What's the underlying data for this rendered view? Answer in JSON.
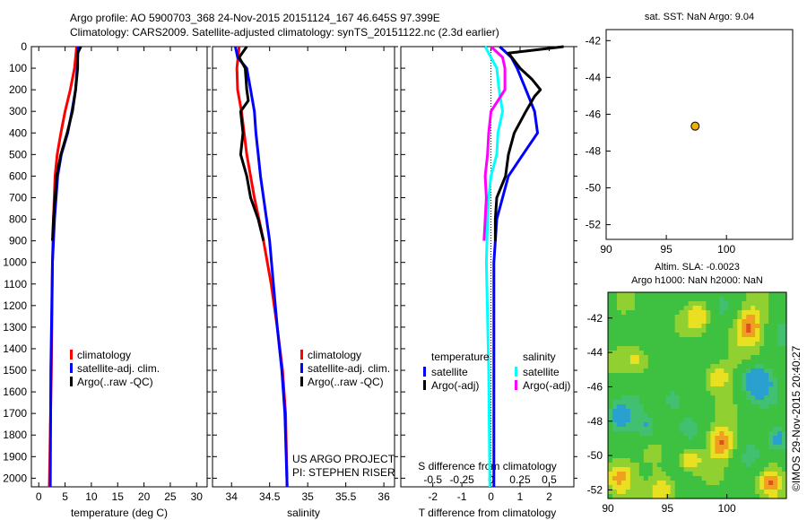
{
  "header": {
    "line1": "Argo profile: AO 5900703_368 24-Nov-2015 20151124_167 46.645S 97.399E",
    "line2": "Climatology: CARS2009. Satellite-adjusted climatology: synTS_20151122.nc (2.3d earlier)"
  },
  "credits": {
    "project": "US ARGO PROJECT",
    "pi": "PI: STEPHEN RISER",
    "imos": "©IMOS 29-Nov-2015 20:40:27"
  },
  "colors": {
    "climatology": "#ff0000",
    "satellite": "#0000ff",
    "argo": "#000000",
    "s_satellite": "#00ffff",
    "s_argo": "#ff00ff",
    "dot": "#f0b000"
  },
  "chart_data": [
    {
      "type": "line",
      "id": "temperature",
      "xlabel": "temperature (deg C)",
      "ylabel": "",
      "xlim": [
        -1.4,
        32
      ],
      "ylim": [
        2040,
        0
      ],
      "xticks": [
        "0",
        "5",
        "10",
        "15",
        "20",
        "25",
        "30"
      ],
      "xtick_values": [
        0,
        5,
        10,
        15,
        20,
        25,
        30
      ],
      "yticks": [
        "0",
        "100",
        "200",
        "300",
        "400",
        "500",
        "600",
        "700",
        "800",
        "900",
        "1000",
        "1100",
        "1200",
        "1300",
        "1400",
        "1500",
        "1600",
        "1700",
        "1800",
        "1900",
        "2000"
      ],
      "legend": [
        "climatology",
        "satellite-adj. clim.",
        "Argo(..raw -QC)"
      ],
      "series": [
        {
          "name": "climatology",
          "color": "#ff0000",
          "depth": [
            0,
            100,
            200,
            300,
            400,
            500,
            600,
            800,
            1000,
            1500,
            2040
          ],
          "values": [
            7.2,
            6.8,
            6.0,
            5.0,
            4.2,
            3.5,
            3.1,
            2.8,
            2.6,
            2.4,
            2.0
          ]
        },
        {
          "name": "satellite-adj. clim.",
          "color": "#0000ff",
          "depth": [
            0,
            100,
            200,
            300,
            400,
            500,
            600,
            800,
            1000,
            1500,
            2040
          ],
          "values": [
            7.5,
            7.3,
            7.0,
            6.3,
            5.5,
            4.3,
            3.6,
            3.0,
            2.6,
            2.3,
            2.2
          ]
        },
        {
          "name": "Argo(..raw -QC)",
          "color": "#000000",
          "depth": [
            0,
            30,
            100,
            200,
            300,
            400,
            500,
            600,
            800,
            900
          ],
          "values": [
            8.0,
            7.4,
            7.4,
            7.0,
            6.4,
            5.4,
            4.2,
            3.4,
            2.8,
            2.6
          ]
        }
      ]
    },
    {
      "type": "line",
      "id": "salinity",
      "xlabel": "salinity",
      "xlim": [
        33.75,
        36.14
      ],
      "ylim": [
        2040,
        0
      ],
      "xticks": [
        "34",
        "34.5",
        "35",
        "35.5",
        "36"
      ],
      "xtick_values": [
        34,
        34.5,
        35,
        35.5,
        36
      ],
      "legend": [
        "climatology",
        "satellite-adj. clim.",
        "Argo(..raw -QC)"
      ],
      "series": [
        {
          "name": "climatology",
          "color": "#ff0000",
          "depth": [
            0,
            100,
            200,
            300,
            500,
            700,
            900,
            1100,
            1300,
            1500,
            1700,
            2040
          ],
          "values": [
            34.1,
            34.07,
            34.08,
            34.13,
            34.2,
            34.3,
            34.42,
            34.52,
            34.6,
            34.67,
            34.71,
            34.73
          ]
        },
        {
          "name": "satellite-adj. clim.",
          "color": "#0000ff",
          "depth": [
            0,
            50,
            100,
            200,
            300,
            400,
            500,
            600,
            700,
            900,
            1100,
            1300,
            1500,
            1700,
            2040
          ],
          "values": [
            34.05,
            34.08,
            34.2,
            34.25,
            34.3,
            34.32,
            34.35,
            34.38,
            34.42,
            34.5,
            34.55,
            34.6,
            34.66,
            34.7,
            34.73
          ]
        },
        {
          "name": "Argo(..raw -QC)",
          "color": "#000000",
          "depth": [
            0,
            50,
            100,
            200,
            250,
            300,
            400,
            500,
            600,
            700,
            800,
            900
          ],
          "values": [
            34.2,
            34.1,
            34.18,
            34.2,
            34.22,
            34.12,
            34.15,
            34.12,
            34.2,
            34.25,
            34.35,
            34.42
          ]
        }
      ]
    },
    {
      "type": "line",
      "id": "difference",
      "xlabel": "T difference from climatology",
      "x2label": "S difference from climatology",
      "xlim": [
        -3.1,
        2.85
      ],
      "ylim": [
        2040,
        0
      ],
      "xticks": [
        "-2",
        "-1",
        "0",
        "1",
        "2"
      ],
      "xtick_values": [
        -2,
        -1,
        0,
        1,
        2
      ],
      "x2ticks": [
        "-0.5",
        "-0.25",
        "0",
        "0.25",
        "0.5"
      ],
      "x2tick_values": [
        -0.5,
        -0.25,
        0,
        0.25,
        0.5
      ],
      "legend_titles": [
        "temperature",
        "salinity"
      ],
      "legend": [
        "satellite",
        "Argo(-adj)",
        "satellite",
        "Argo(-adj)"
      ],
      "series": [
        {
          "name": "T satellite",
          "color": "#0000ff",
          "units": "T",
          "depth": [
            0,
            50,
            100,
            200,
            300,
            400,
            500,
            600,
            700,
            800,
            900,
            1000,
            2040
          ],
          "values": [
            0.3,
            0.7,
            0.9,
            1.2,
            1.5,
            1.6,
            1.1,
            0.6,
            0.4,
            0.2,
            0.15,
            0.1,
            0.1
          ]
        },
        {
          "name": "T Argo(-adj)",
          "color": "#000000",
          "units": "T",
          "depth": [
            0,
            30,
            100,
            150,
            200,
            230,
            300,
            400,
            500,
            600,
            700,
            800,
            900
          ],
          "values": [
            2.5,
            0.6,
            1.0,
            1.4,
            1.7,
            1.5,
            1.2,
            0.8,
            0.6,
            0.5,
            0.2,
            0.15,
            0.15
          ]
        },
        {
          "name": "S satellite",
          "color": "#00ffff",
          "units": "S",
          "depth": [
            0,
            100,
            200,
            300,
            400,
            500,
            600,
            700,
            800,
            1000,
            1500,
            2040
          ],
          "values": [
            -0.05,
            0.05,
            0.07,
            0.1,
            0.06,
            0.05,
            0.0,
            -0.02,
            -0.03,
            -0.04,
            -0.02,
            -0.01
          ]
        },
        {
          "name": "S Argo(-adj)",
          "color": "#ff00ff",
          "units": "S",
          "depth": [
            0,
            50,
            100,
            200,
            300,
            400,
            500,
            600,
            700,
            800,
            900
          ],
          "values": [
            0.0,
            0.1,
            0.12,
            0.12,
            0.0,
            -0.02,
            -0.03,
            -0.05,
            -0.04,
            -0.05,
            -0.06
          ]
        }
      ]
    },
    {
      "type": "scatter",
      "id": "sst-map",
      "title": "sat. SST: NaN Argo: 9.04",
      "xlim": [
        90,
        105.5
      ],
      "ylim": [
        -52.8,
        -41.4
      ],
      "xticks": [
        "90",
        "95",
        "100"
      ],
      "xtick_values": [
        90,
        95,
        100
      ],
      "yticks": [
        "-42",
        "-44",
        "-46",
        "-48",
        "-50",
        "-52"
      ],
      "ytick_values": [
        -42,
        -44,
        -46,
        -48,
        -50,
        -52
      ],
      "points": [
        {
          "lon": 97.399,
          "lat": -46.645
        }
      ]
    },
    {
      "type": "heatmap",
      "id": "sla-map",
      "title": "Altim. SLA: -0.0023",
      "subtitle": "Argo h1000: NaN h2000: NaN",
      "xlim": [
        90,
        105
      ],
      "ylim": [
        -52.5,
        -40.5
      ],
      "xticks": [
        "90",
        "95",
        "100"
      ],
      "xtick_values": [
        90,
        95,
        100
      ],
      "yticks": [
        "-42",
        "-44",
        "-46",
        "-48",
        "-50",
        "-52"
      ],
      "ytick_values": [
        -42,
        -44,
        -46,
        -48,
        -50,
        -52
      ]
    }
  ]
}
